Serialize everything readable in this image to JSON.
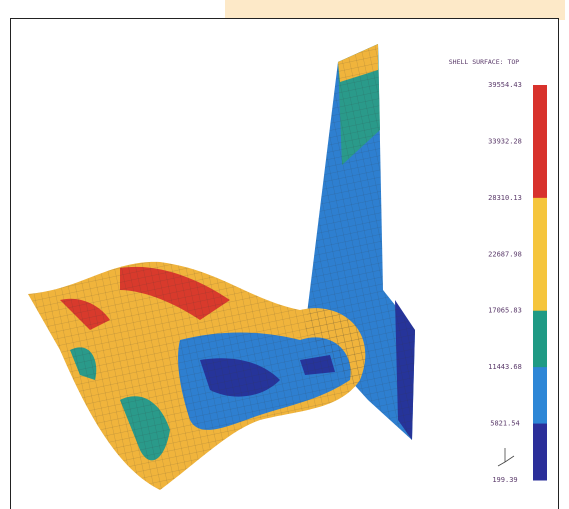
{
  "legend": {
    "title": "SHELL SURFACE: TOP",
    "labels": [
      "39554.43",
      "33932.28",
      "28310.13",
      "22687.98",
      "17065.83",
      "11443.68",
      "5821.54",
      "199.39"
    ]
  }
}
